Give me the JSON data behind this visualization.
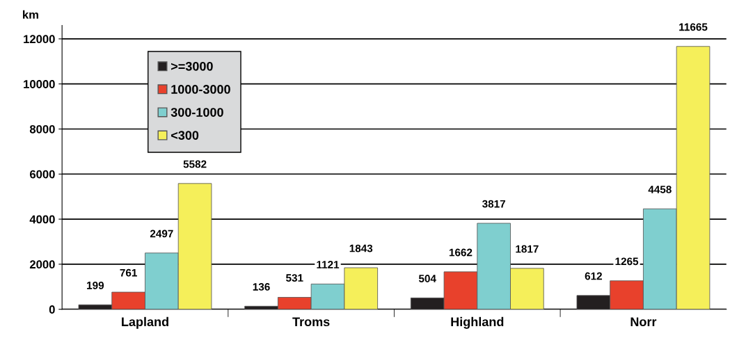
{
  "chart_data": {
    "type": "bar",
    "ylabel": "km",
    "categories": [
      "Lapland",
      "Troms",
      "Highland",
      "Norr"
    ],
    "series": [
      {
        "name": ">=3000",
        "color": "#231f20",
        "values": [
          199,
          136,
          504,
          612
        ]
      },
      {
        "name": "1000-3000",
        "color": "#e8412c",
        "values": [
          761,
          531,
          1662,
          1265
        ]
      },
      {
        "name": "300-1000",
        "color": "#7fcfcf",
        "values": [
          2497,
          1121,
          3817,
          4458
        ]
      },
      {
        "name": "<300",
        "color": "#f5ef5a",
        "values": [
          5582,
          1843,
          1817,
          11665
        ]
      }
    ],
    "ylim": [
      0,
      12600
    ],
    "yticks": [
      0,
      2000,
      4000,
      6000,
      8000,
      10000,
      12000
    ],
    "grid": "y",
    "legend": "top left",
    "data_labels": true
  }
}
